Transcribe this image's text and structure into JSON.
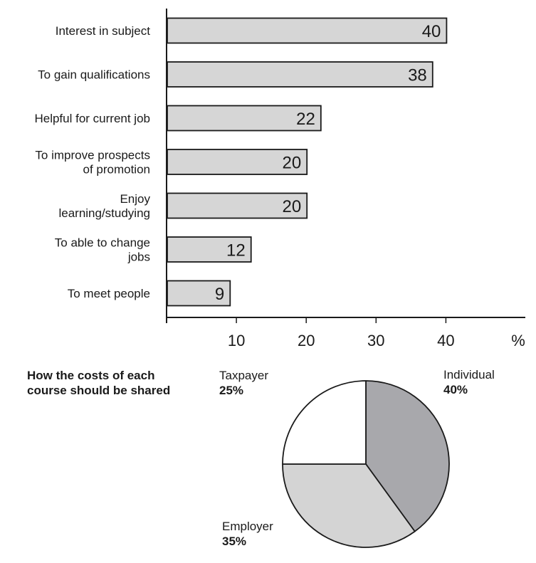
{
  "chart_data": [
    {
      "type": "bar",
      "orientation": "horizontal",
      "categories": [
        [
          "Interest in subject"
        ],
        [
          "To gain qualifications"
        ],
        [
          "Helpful for current job"
        ],
        [
          "To improve prospects",
          "of promotion"
        ],
        [
          "Enjoy",
          "learning/studying"
        ],
        [
          "To able to change",
          "jobs"
        ],
        [
          "To meet people"
        ]
      ],
      "values": [
        40,
        38,
        22,
        20,
        20,
        12,
        9
      ],
      "xlabel": "%",
      "xlim": [
        0,
        52
      ],
      "xticks": [
        10,
        20,
        30,
        40
      ],
      "bar_color": "#d6d6d6",
      "grid": false
    },
    {
      "type": "pie",
      "title": [
        "How the costs of each",
        "course should be shared"
      ],
      "slices": [
        {
          "name": "Individual",
          "value": 40,
          "pct_label": "40%",
          "color": "#a8a8ac"
        },
        {
          "name": "Employer",
          "value": 35,
          "pct_label": "35%",
          "color": "#d4d4d4"
        },
        {
          "name": "Taxpayer",
          "value": 25,
          "pct_label": "25%",
          "color": "#ffffff"
        }
      ]
    }
  ]
}
